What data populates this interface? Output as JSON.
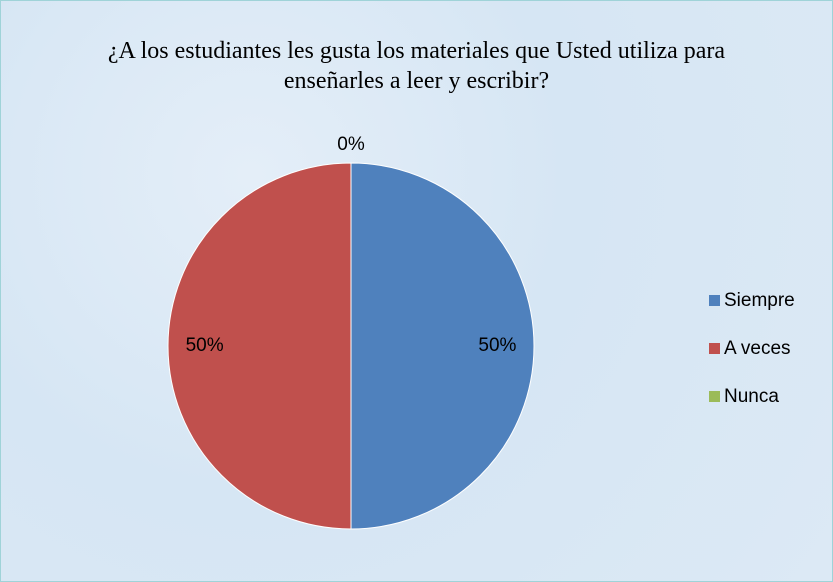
{
  "chart_data": {
    "type": "pie",
    "title": "¿A los estudiantes les gusta los materiales que Usted utiliza para enseñarles a leer y escribir?",
    "categories": [
      "Siempre",
      "A veces",
      "Nunca"
    ],
    "values": [
      50,
      50,
      0
    ],
    "value_labels": [
      "50%",
      "50%",
      "0%"
    ],
    "colors": [
      "#4f81bd",
      "#c0504d",
      "#9bbb59"
    ],
    "legend": "right"
  }
}
